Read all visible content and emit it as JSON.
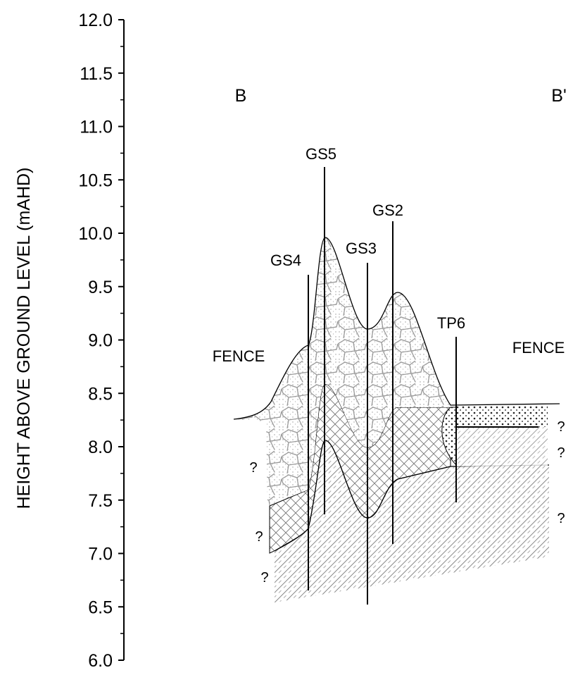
{
  "axis": {
    "label": "HEIGHT ABOVE GROUND LEVEL (mAHD)",
    "lim": [
      6,
      12
    ],
    "ticks": [
      {
        "value": 12,
        "label": "12.0"
      },
      {
        "value": 11.5,
        "label": "11.5"
      },
      {
        "value": 11,
        "label": "11.0"
      },
      {
        "value": 10.5,
        "label": "10.5"
      },
      {
        "value": 10,
        "label": "10.0"
      },
      {
        "value": 9.5,
        "label": "9.5"
      },
      {
        "value": 9,
        "label": "9.0"
      },
      {
        "value": 8.5,
        "label": "8.5"
      },
      {
        "value": 8,
        "label": "8.0"
      },
      {
        "value": 7.5,
        "label": "7.5"
      },
      {
        "value": 7,
        "label": "7.0"
      },
      {
        "value": 6.5,
        "label": "6.5"
      },
      {
        "value": 6,
        "label": "6.0"
      }
    ]
  },
  "section": {
    "start": "B",
    "end": "B'"
  },
  "boreholes": [
    "GS5",
    "GS4",
    "GS3",
    "GS2",
    "TP6"
  ],
  "annotations": [
    "FENCE",
    "FENCE",
    "?",
    "?",
    "?",
    "?",
    "?",
    "?"
  ]
}
